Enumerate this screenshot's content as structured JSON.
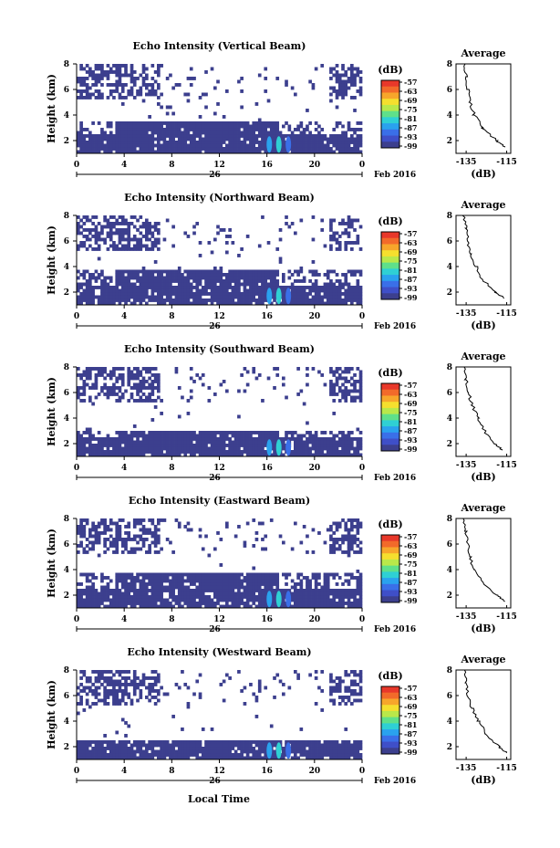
{
  "figure": {
    "bottom_label": "Local Time",
    "date_label": "Feb 2016",
    "date_tick": "26",
    "colorbar_unit": "(dB)",
    "colorbar_ticks": [
      "-57",
      "-63",
      "-69",
      "-75",
      "-81",
      "-87",
      "-93",
      "-99"
    ],
    "colorbar_colors": [
      "#e8382a",
      "#f26a2a",
      "#f7a62b",
      "#f5df2e",
      "#b9e84a",
      "#5fe08a",
      "#2fd0d4",
      "#2aa2ee",
      "#3a6fe8",
      "#3f4fc8",
      "#3c3f8e"
    ],
    "main_ylabel": "Height (km)",
    "avg_title": "Average",
    "avg_xlabel": "(dB)",
    "avg_xticks": [
      "-135",
      "-115"
    ],
    "avg_yticks": [
      "2",
      "4",
      "6",
      "8"
    ],
    "avg_yticks_alt": [
      "2",
      "4",
      "6",
      "8"
    ]
  },
  "chart_data": [
    {
      "type": "heatmap",
      "title": "Echo Intensity (Vertical Beam)",
      "xlabel": "",
      "ylabel": "Height (km)",
      "xticks": [
        "0",
        "4",
        "8",
        "12",
        "16",
        "20",
        "0"
      ],
      "yticks": [
        "2",
        "4",
        "6",
        "8"
      ],
      "xlim": [
        0,
        24
      ],
      "ylim": [
        1,
        8
      ],
      "zlim": [
        -99,
        -57
      ],
      "colorbar_label": "(dB)",
      "profile": {
        "title": "Average",
        "xlabel": "(dB)",
        "xticks": [
          "-135",
          "-115"
        ],
        "xlim": [
          -140,
          -113
        ],
        "heights": [
          1.5,
          2,
          3,
          4,
          5,
          6,
          7,
          8
        ],
        "values": [
          -116,
          -120,
          -127,
          -131,
          -133,
          -134,
          -135,
          -136
        ]
      }
    },
    {
      "type": "heatmap",
      "title": "Echo Intensity (Northward Beam)",
      "xlabel": "",
      "ylabel": "Height (km)",
      "xticks": [
        "0",
        "4",
        "8",
        "12",
        "16",
        "20",
        "0"
      ],
      "yticks": [
        "2",
        "4",
        "6",
        "8"
      ],
      "xlim": [
        0,
        24
      ],
      "ylim": [
        1,
        8
      ],
      "zlim": [
        -99,
        -57
      ],
      "colorbar_label": "(dB)",
      "profile": {
        "title": "Average",
        "xlabel": "(dB)",
        "xticks": [
          "-135",
          "-115"
        ],
        "xlim": [
          -140,
          -113
        ],
        "heights": [
          1.5,
          2,
          3,
          4,
          5,
          6,
          7,
          8
        ],
        "values": [
          -116,
          -121,
          -127,
          -130,
          -133,
          -134,
          -135,
          -136
        ]
      }
    },
    {
      "type": "heatmap",
      "title": "Echo Intensity (Southward Beam)",
      "xlabel": "",
      "ylabel": "Height (km)",
      "xticks": [
        "0",
        "4",
        "8",
        "12",
        "16",
        "20",
        "0"
      ],
      "yticks": [
        "2",
        "4",
        "6",
        "8"
      ],
      "xlim": [
        0,
        24
      ],
      "ylim": [
        1,
        8
      ],
      "zlim": [
        -99,
        -57
      ],
      "colorbar_label": "(dB)",
      "profile": {
        "title": "Average",
        "xlabel": "(dB)",
        "xticks": [
          "-135",
          "-115"
        ],
        "xlim": [
          -140,
          -113
        ],
        "heights": [
          1.5,
          2,
          3,
          4,
          5,
          6,
          7,
          8
        ],
        "values": [
          -117,
          -121,
          -126,
          -129,
          -132,
          -134,
          -135,
          -136
        ]
      }
    },
    {
      "type": "heatmap",
      "title": "Echo Intensity (Eastward Beam)",
      "xlabel": "",
      "ylabel": "Height (km)",
      "xticks": [
        "0",
        "4",
        "8",
        "12",
        "16",
        "20",
        "0"
      ],
      "yticks": [
        "2",
        "4",
        "6",
        "8"
      ],
      "xlim": [
        0,
        24
      ],
      "ylim": [
        1,
        8
      ],
      "zlim": [
        -99,
        -57
      ],
      "colorbar_label": "(dB)",
      "profile": {
        "title": "Average",
        "xlabel": "(dB)",
        "xticks": [
          "-135",
          "-115"
        ],
        "xlim": [
          -140,
          -113
        ],
        "heights": [
          1.5,
          2,
          3,
          4,
          5,
          6,
          7,
          8
        ],
        "values": [
          -116,
          -120,
          -127,
          -131,
          -133,
          -134,
          -135,
          -136
        ]
      }
    },
    {
      "type": "heatmap",
      "title": "Echo Intensity (Westward Beam)",
      "xlabel": "Local Time",
      "ylabel": "Height (km)",
      "xticks": [
        "0",
        "4",
        "8",
        "12",
        "16",
        "20",
        "0"
      ],
      "yticks": [
        "2",
        "4",
        "6",
        "8"
      ],
      "xlim": [
        0,
        24
      ],
      "ylim": [
        1,
        8
      ],
      "zlim": [
        -99,
        -57
      ],
      "colorbar_label": "(dB)",
      "profile": {
        "title": "Average",
        "xlabel": "(dB)",
        "xticks": [
          "-135",
          "-115"
        ],
        "xlim": [
          -140,
          -113
        ],
        "heights": [
          1.5,
          2,
          3,
          4,
          5,
          6,
          7,
          8
        ],
        "values": [
          -115,
          -119,
          -125,
          -129,
          -132,
          -134,
          -135,
          -136
        ]
      }
    }
  ]
}
